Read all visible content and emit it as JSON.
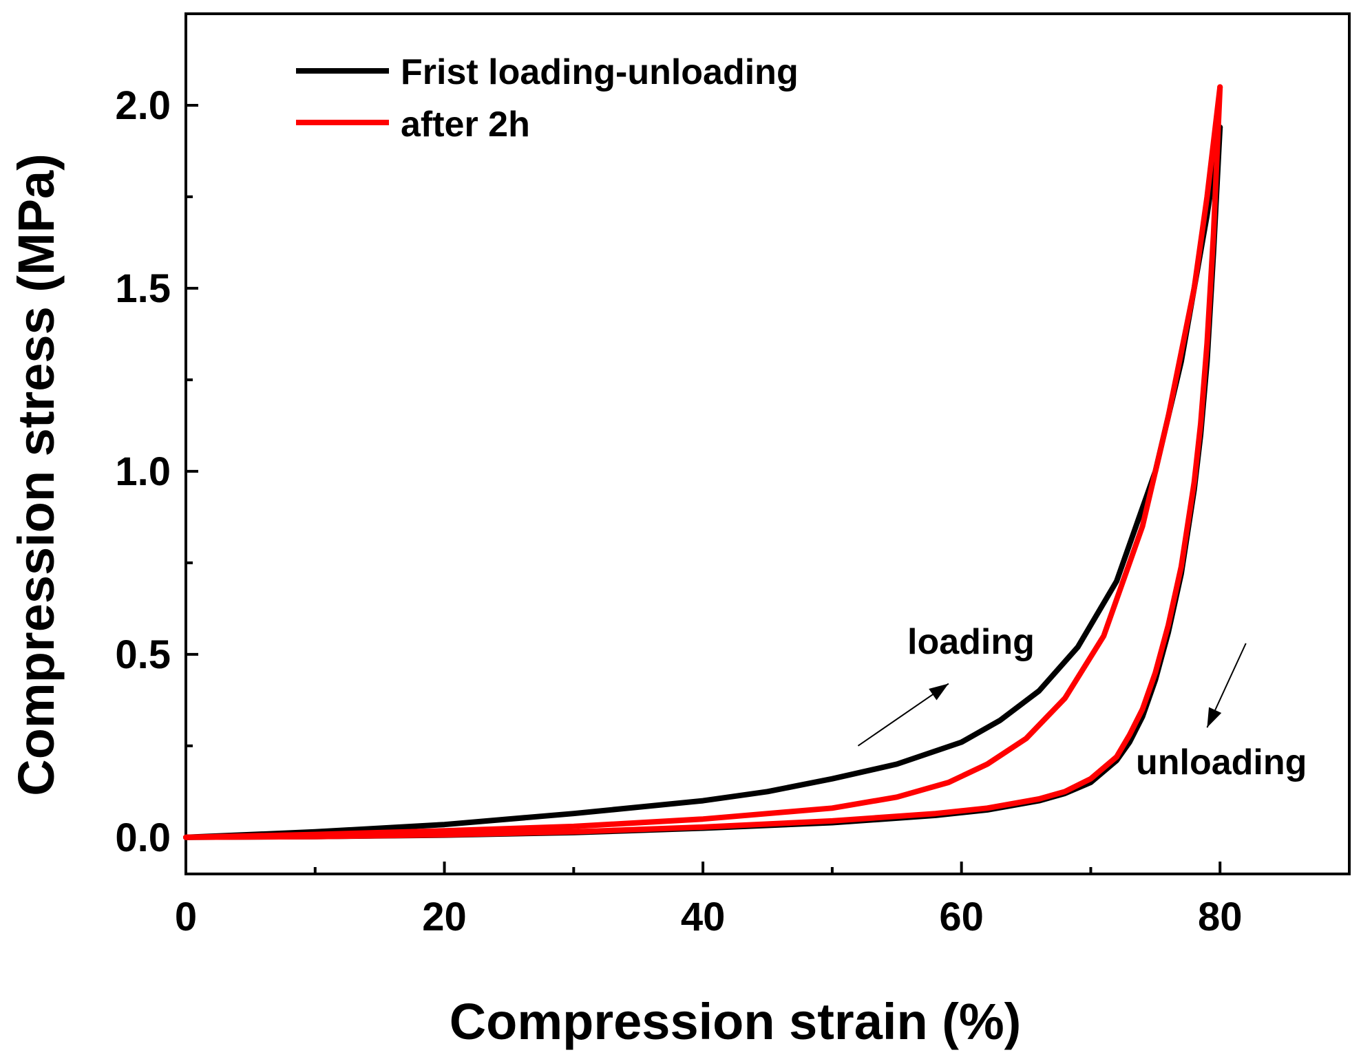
{
  "chart_data": {
    "type": "line",
    "title": "",
    "xlabel": "Compression strain (%)",
    "ylabel": "Compression stress (MPa)",
    "xlim": [
      0,
      90
    ],
    "ylim": [
      -0.1,
      2.25
    ],
    "x_ticks": [
      0,
      20,
      40,
      60,
      80
    ],
    "x_minor_ticks": [
      10,
      30,
      50,
      70,
      90
    ],
    "y_ticks": [
      0.0,
      0.5,
      1.0,
      1.5,
      2.0
    ],
    "y_minor_ticks": [
      0.25,
      0.75,
      1.25,
      1.75
    ],
    "x_tick_labels": [
      "0",
      "20",
      "40",
      "60",
      "80"
    ],
    "y_tick_labels": [
      "0.0",
      "0.5",
      "1.0",
      "1.5",
      "2.0"
    ],
    "grid": false,
    "legend_position": "top-left",
    "series": [
      {
        "name": "Frist loading-unloading",
        "color": "#000000",
        "loading": {
          "x": [
            0,
            10,
            20,
            30,
            40,
            45,
            50,
            55,
            60,
            63,
            66,
            69,
            72,
            75,
            77,
            78,
            79,
            80
          ],
          "y": [
            0,
            0.015,
            0.035,
            0.065,
            0.1,
            0.125,
            0.16,
            0.2,
            0.26,
            0.32,
            0.4,
            0.52,
            0.7,
            1.0,
            1.3,
            1.5,
            1.7,
            1.94
          ]
        },
        "unloading": {
          "x": [
            80,
            79.5,
            79,
            78.5,
            78,
            77,
            76,
            75,
            74,
            73,
            72,
            70,
            68,
            66,
            62,
            58,
            50,
            40,
            30,
            20,
            10,
            0
          ],
          "y": [
            1.94,
            1.6,
            1.3,
            1.1,
            0.95,
            0.72,
            0.56,
            0.43,
            0.33,
            0.26,
            0.21,
            0.15,
            0.12,
            0.1,
            0.075,
            0.06,
            0.04,
            0.025,
            0.013,
            0.006,
            0.002,
            0
          ]
        }
      },
      {
        "name": "after 2h",
        "color": "#ff0000",
        "loading": {
          "x": [
            0,
            10,
            20,
            30,
            40,
            50,
            55,
            59,
            62,
            65,
            68,
            71,
            74,
            76,
            78,
            79,
            80
          ],
          "y": [
            0,
            0.008,
            0.018,
            0.03,
            0.05,
            0.08,
            0.11,
            0.15,
            0.2,
            0.27,
            0.38,
            0.55,
            0.85,
            1.15,
            1.5,
            1.75,
            2.05
          ]
        },
        "unloading": {
          "x": [
            80,
            79.5,
            79,
            78.5,
            78,
            77,
            76,
            75,
            74,
            73,
            72,
            70,
            68,
            66,
            62,
            58,
            50,
            40,
            30,
            20,
            10,
            0
          ],
          "y": [
            2.05,
            1.65,
            1.35,
            1.13,
            0.97,
            0.74,
            0.58,
            0.45,
            0.35,
            0.28,
            0.22,
            0.16,
            0.125,
            0.105,
            0.08,
            0.065,
            0.045,
            0.028,
            0.015,
            0.007,
            0.002,
            0
          ]
        }
      }
    ],
    "annotations": [
      {
        "text": "loading",
        "arrow_from": [
          52,
          0.25
        ],
        "arrow_to": [
          59,
          0.42
        ]
      },
      {
        "text": "unloading",
        "arrow_from": [
          82,
          0.53
        ],
        "arrow_to": [
          79,
          0.3
        ]
      }
    ]
  }
}
